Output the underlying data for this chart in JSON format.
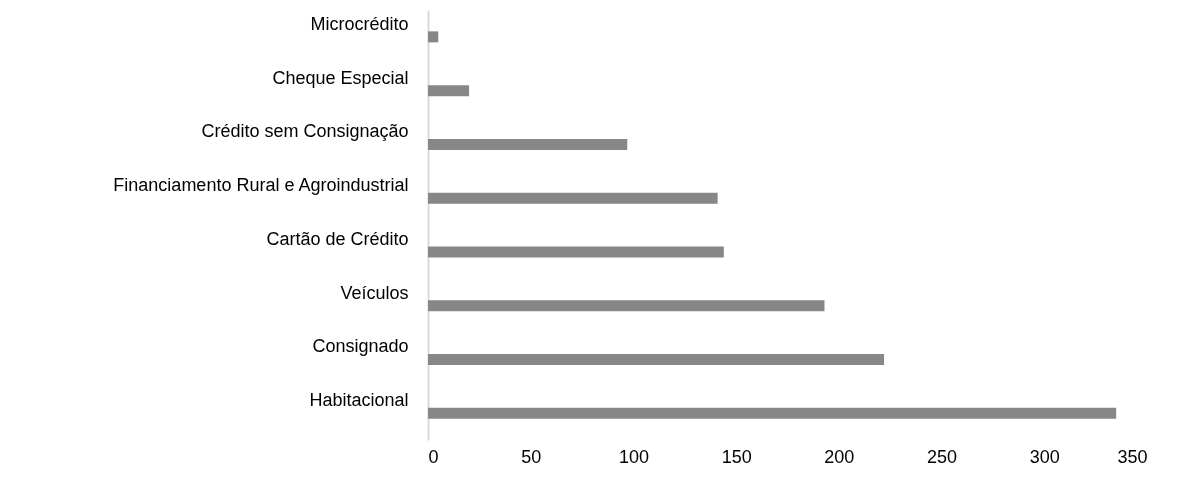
{
  "chart_data": {
    "type": "bar",
    "orientation": "horizontal",
    "categories": [
      "Microcrédito",
      "Cheque Especial",
      "Crédito sem Consignação",
      "Financiamento Rural e Agroindustrial",
      "Cartão de Crédito",
      "Veículos",
      "Consignado",
      "Habitacional"
    ],
    "values": [
      5,
      20,
      97,
      141,
      144,
      193,
      222,
      335
    ],
    "color": "#878787",
    "xlim": [
      0,
      350
    ],
    "xticks": [
      0,
      50,
      100,
      150,
      200,
      250,
      300,
      350
    ],
    "grid": false
  }
}
